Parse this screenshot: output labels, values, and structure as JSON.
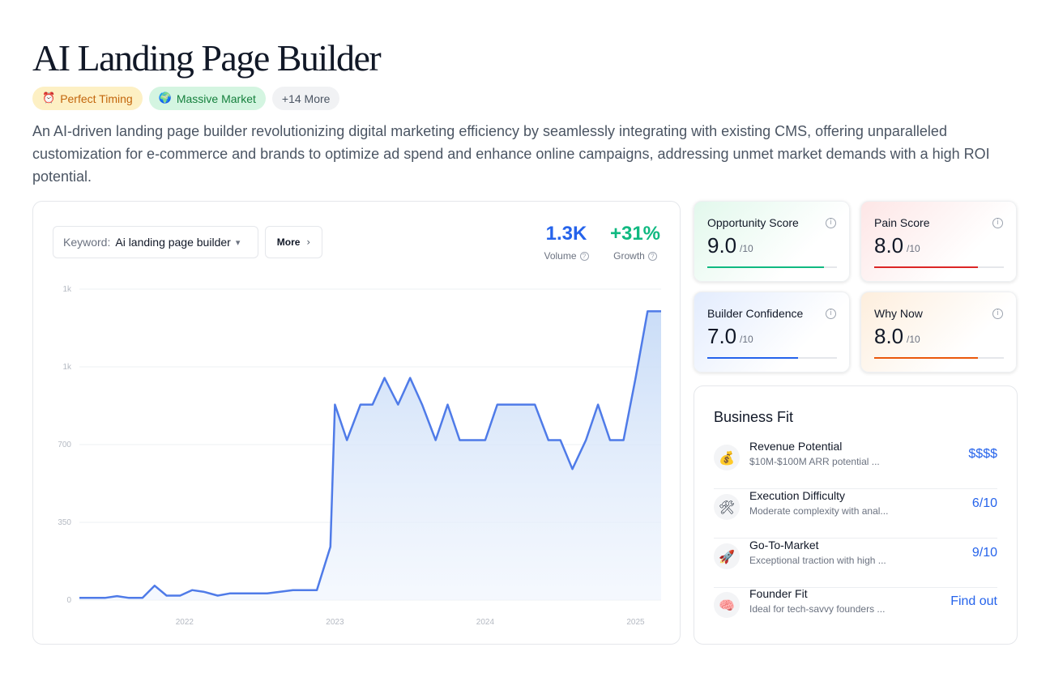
{
  "title": "AI Landing Page Builder",
  "tags": [
    {
      "emoji": "⏰",
      "label": "Perfect Timing"
    },
    {
      "emoji": "🌍",
      "label": "Massive Market"
    },
    {
      "label": "+14 More"
    }
  ],
  "description": "An AI-driven landing page builder revolutionizing digital marketing efficiency by seamlessly integrating with existing CMS, offering unparalleled customization for e-commerce and brands to optimize ad spend and enhance online campaigns, addressing unmet market demands with a high ROI potential.",
  "keyword": {
    "label": "Keyword:",
    "value": "Ai landing page builder"
  },
  "more_button": "More",
  "metrics": {
    "volume": {
      "value": "1.3K",
      "label": "Volume"
    },
    "growth": {
      "value": "+31%",
      "label": "Growth"
    }
  },
  "chart_data": {
    "type": "area",
    "y_tick_labels": [
      "0",
      "350",
      "700",
      "1k",
      "1k"
    ],
    "y_tick_values": [
      0,
      350,
      700,
      1050,
      1400
    ],
    "ylim": [
      0,
      1400
    ],
    "x_tick_labels": [
      "2022",
      "2023",
      "2024",
      "2025"
    ],
    "x_tick_values": [
      2022,
      2023,
      2024,
      2025
    ],
    "xlim": [
      2021.3,
      2025.17
    ],
    "grid": true,
    "color": "#4f7be8",
    "series": [
      {
        "x": [
          2021.3,
          2021.38,
          2021.47,
          2021.55,
          2021.63,
          2021.72,
          2021.8,
          2021.88,
          2021.97,
          2022.05,
          2022.13,
          2022.22,
          2022.3,
          2022.38,
          2022.47,
          2022.55,
          2022.63,
          2022.72,
          2022.8,
          2022.88,
          2022.97,
          2023.0,
          2023.08,
          2023.17,
          2023.25,
          2023.33,
          2023.42,
          2023.5,
          2023.58,
          2023.67,
          2023.75,
          2023.83,
          2023.92,
          2024.0,
          2024.08,
          2024.17,
          2024.25,
          2024.33,
          2024.42,
          2024.5,
          2024.58,
          2024.67,
          2024.75,
          2024.83,
          2024.92,
          2025.0,
          2025.08,
          2025.17
        ],
        "y": [
          10,
          10,
          10,
          18,
          10,
          10,
          65,
          20,
          20,
          45,
          37,
          20,
          30,
          30,
          30,
          30,
          37,
          45,
          45,
          45,
          240,
          880,
          720,
          880,
          880,
          1000,
          880,
          1000,
          880,
          720,
          880,
          720,
          720,
          720,
          880,
          880,
          880,
          880,
          720,
          720,
          590,
          720,
          880,
          720,
          720,
          1000,
          1300,
          1300
        ]
      }
    ]
  },
  "scores": [
    {
      "label": "Opportunity Score",
      "value": "9.0",
      "denom": "/10",
      "fraction": 0.9,
      "color": "#10b981"
    },
    {
      "label": "Pain Score",
      "value": "8.0",
      "denom": "/10",
      "fraction": 0.8,
      "color": "#dc2626"
    },
    {
      "label": "Builder Confidence",
      "value": "7.0",
      "denom": "/10",
      "fraction": 0.7,
      "color": "#2563eb"
    },
    {
      "label": "Why Now",
      "value": "8.0",
      "denom": "/10",
      "fraction": 0.8,
      "color": "#ea580c"
    }
  ],
  "business_fit": {
    "title": "Business Fit",
    "rows": [
      {
        "icon": "money-bag-icon",
        "emoji": "💰",
        "name": "Revenue Potential",
        "sub": "$10M-$100M ARR potential ...",
        "value": "$$$$"
      },
      {
        "icon": "tools-icon",
        "emoji": "🛠",
        "name": "Execution Difficulty",
        "sub": "Moderate complexity with anal...",
        "value": "6/10"
      },
      {
        "icon": "rocket-icon",
        "emoji": "🚀",
        "name": "Go-To-Market",
        "sub": "Exceptional traction with high ...",
        "value": "9/10"
      },
      {
        "icon": "brain-icon",
        "emoji": "🧠",
        "name": "Founder Fit",
        "sub": "Ideal for tech-savvy founders ...",
        "value": "Find out"
      }
    ]
  }
}
